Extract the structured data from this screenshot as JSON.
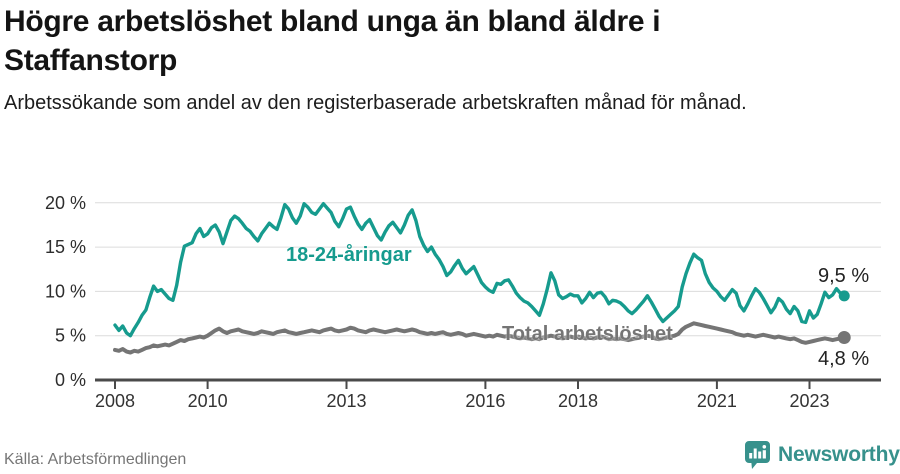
{
  "header": {
    "title": "Högre arbetslöshet bland unga än bland äldre i Staffanstorp",
    "subtitle": "Arbetssökande som andel av den registerbaserade arbetskraften månad för månad."
  },
  "chart_data": {
    "type": "line",
    "x_start_year": 2008,
    "x_step_months": 1,
    "x_end": "2023-10",
    "x_tick_years": [
      2008,
      2010,
      2013,
      2016,
      2018,
      2021,
      2023
    ],
    "y_ticks": [
      0,
      5,
      10,
      15,
      20
    ],
    "y_tick_labels": [
      "0 %",
      "5 %",
      "10 %",
      "15 %",
      "20 %"
    ],
    "ylim": [
      0,
      21
    ],
    "grid": true,
    "legend_position": "inline-labels",
    "series": [
      {
        "name": "18-24-åringar",
        "color": "#169b8e",
        "values": [
          6.2,
          5.6,
          6.1,
          5.3,
          5.0,
          5.8,
          6.5,
          7.3,
          7.9,
          9.3,
          10.6,
          10.0,
          10.2,
          9.7,
          9.2,
          9.0,
          10.7,
          13.3,
          15.1,
          15.3,
          15.5,
          16.5,
          17.1,
          16.2,
          16.5,
          17.2,
          17.5,
          16.7,
          15.4,
          16.7,
          18.0,
          18.5,
          18.2,
          17.7,
          17.1,
          16.8,
          16.2,
          15.7,
          16.5,
          17.1,
          17.7,
          17.3,
          17.0,
          18.3,
          19.8,
          19.3,
          18.3,
          17.7,
          18.5,
          19.9,
          19.5,
          18.9,
          18.7,
          19.3,
          19.9,
          19.4,
          18.9,
          17.9,
          17.3,
          18.2,
          19.3,
          19.5,
          18.5,
          17.6,
          17.0,
          17.7,
          18.1,
          17.2,
          16.3,
          15.8,
          16.7,
          17.4,
          17.8,
          17.2,
          16.6,
          17.5,
          18.6,
          19.2,
          18.0,
          16.2,
          15.2,
          14.5,
          15.0,
          14.2,
          13.6,
          12.8,
          11.8,
          12.2,
          12.9,
          13.5,
          12.6,
          12.0,
          12.4,
          12.8,
          11.9,
          11.0,
          10.5,
          10.1,
          9.9,
          10.9,
          10.8,
          11.2,
          11.3,
          10.6,
          9.8,
          9.3,
          8.9,
          8.7,
          8.3,
          7.8,
          7.3,
          8.6,
          10.2,
          12.1,
          11.2,
          9.6,
          9.2,
          9.4,
          9.7,
          9.5,
          9.5,
          8.7,
          9.2,
          9.9,
          9.3,
          9.8,
          9.9,
          9.4,
          8.6,
          9.0,
          8.9,
          8.7,
          8.3,
          7.8,
          7.5,
          7.9,
          8.4,
          8.9,
          9.5,
          8.8,
          8.0,
          7.2,
          6.6,
          7.0,
          7.4,
          7.8,
          8.3,
          10.5,
          12.0,
          13.2,
          14.2,
          13.8,
          13.5,
          12.0,
          11.0,
          10.4,
          10.0,
          9.4,
          9.0,
          9.6,
          10.2,
          9.8,
          8.4,
          7.8,
          8.6,
          9.5,
          10.3,
          9.9,
          9.2,
          8.4,
          7.6,
          8.2,
          9.2,
          8.8,
          8.0,
          7.5,
          8.3,
          7.8,
          6.6,
          6.5,
          7.8,
          7.0,
          7.4,
          8.6,
          9.9,
          9.3,
          9.6,
          10.3,
          9.8,
          9.5
        ]
      },
      {
        "name": "Total arbetslöshet",
        "color": "#757575",
        "values": [
          3.4,
          3.3,
          3.5,
          3.2,
          3.1,
          3.3,
          3.2,
          3.4,
          3.6,
          3.7,
          3.9,
          3.8,
          3.9,
          4.0,
          3.9,
          4.1,
          4.3,
          4.5,
          4.4,
          4.6,
          4.7,
          4.8,
          4.9,
          4.8,
          5.0,
          5.3,
          5.6,
          5.8,
          5.5,
          5.3,
          5.5,
          5.6,
          5.7,
          5.5,
          5.4,
          5.3,
          5.2,
          5.3,
          5.5,
          5.4,
          5.3,
          5.2,
          5.4,
          5.5,
          5.6,
          5.4,
          5.3,
          5.2,
          5.3,
          5.4,
          5.5,
          5.6,
          5.5,
          5.4,
          5.6,
          5.7,
          5.8,
          5.6,
          5.5,
          5.6,
          5.7,
          5.9,
          5.8,
          5.6,
          5.5,
          5.4,
          5.6,
          5.7,
          5.6,
          5.5,
          5.4,
          5.5,
          5.6,
          5.7,
          5.6,
          5.5,
          5.6,
          5.7,
          5.6,
          5.4,
          5.3,
          5.2,
          5.3,
          5.2,
          5.3,
          5.4,
          5.2,
          5.1,
          5.2,
          5.3,
          5.2,
          5.0,
          5.1,
          5.2,
          5.1,
          5.0,
          4.9,
          5.0,
          4.9,
          5.1,
          5.0,
          4.9,
          5.0,
          4.9,
          4.8,
          4.7,
          4.8,
          4.7,
          4.6,
          4.7,
          4.6,
          4.8,
          4.9,
          5.0,
          4.9,
          4.8,
          4.7,
          4.8,
          4.9,
          4.8,
          4.9,
          4.8,
          4.7,
          4.8,
          4.7,
          4.8,
          4.9,
          4.8,
          4.6,
          4.7,
          4.6,
          4.7,
          4.6,
          4.5,
          4.6,
          4.7,
          4.8,
          4.9,
          5.0,
          4.9,
          4.7,
          4.6,
          4.7,
          4.8,
          4.9,
          5.0,
          5.2,
          5.7,
          6.0,
          6.2,
          6.4,
          6.3,
          6.2,
          6.1,
          6.0,
          5.9,
          5.8,
          5.7,
          5.6,
          5.5,
          5.4,
          5.2,
          5.1,
          5.0,
          5.1,
          5.0,
          4.9,
          5.0,
          5.1,
          5.0,
          4.9,
          4.8,
          4.9,
          4.8,
          4.7,
          4.6,
          4.7,
          4.5,
          4.3,
          4.2,
          4.3,
          4.4,
          4.5,
          4.6,
          4.7,
          4.6,
          4.5,
          4.6,
          4.7,
          4.8
        ]
      }
    ],
    "annotations": {
      "youth_label": "18-24-åringar",
      "total_label": "Total arbetslöshet",
      "youth_end_value": "9,5 %",
      "total_end_value": "4,8 %"
    }
  },
  "footer": {
    "source": "Källa: Arbetsförmedlingen",
    "brand": "Newsworthy"
  },
  "colors": {
    "accent_teal": "#169b8e",
    "line_gray": "#757575",
    "brand_teal": "#37918c",
    "grid_gray": "#dcdcdc",
    "axis_gray": "#4a4a4a"
  }
}
